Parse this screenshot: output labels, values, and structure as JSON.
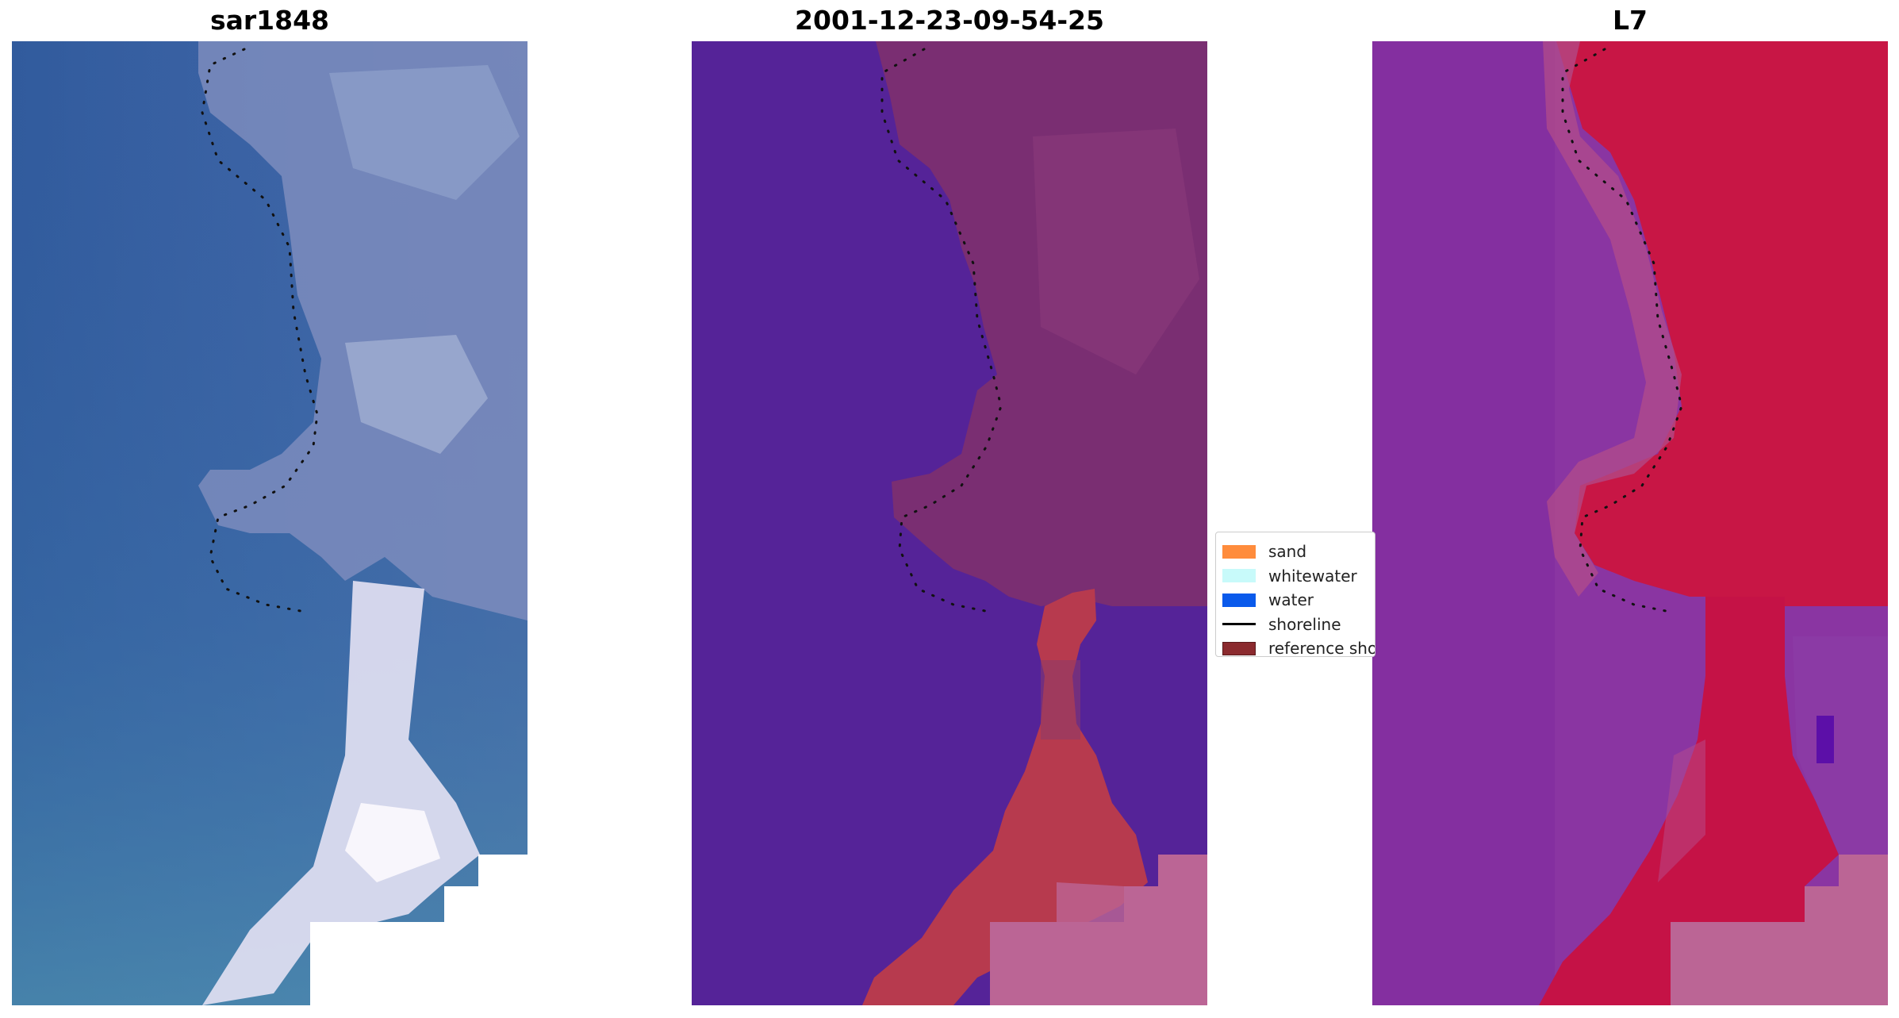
{
  "panels": [
    {
      "title": "sar1848",
      "image": "rgb-composite"
    },
    {
      "title": "2001-12-23-09-54-25",
      "image": "classified-image"
    },
    {
      "title": "L7",
      "image": "false-color"
    }
  ],
  "legend": [
    {
      "label": "sand",
      "color": "#ff8c3c",
      "type": "patch"
    },
    {
      "label": "whitewater",
      "color": "#c8fafa",
      "type": "patch"
    },
    {
      "label": "water",
      "color": "#0a5aeb",
      "type": "patch"
    },
    {
      "label": "shoreline",
      "color": "#000000",
      "type": "line"
    },
    {
      "label": "reference shoreline",
      "color": "#8b2a2e",
      "type": "patch"
    }
  ],
  "colors": {
    "rgb_water": "#3a5f9e",
    "rgb_land": "#7b8fbf",
    "rgb_whitewater": "#e8e8f4",
    "class_water": "#552398",
    "class_land": "#7a2e72",
    "class_reference": "#b73a4e",
    "class_nodata": "#bb6595",
    "l7_water": "#8431a0",
    "l7_land": "#c81645",
    "l7_nodata": "#bb6595"
  }
}
